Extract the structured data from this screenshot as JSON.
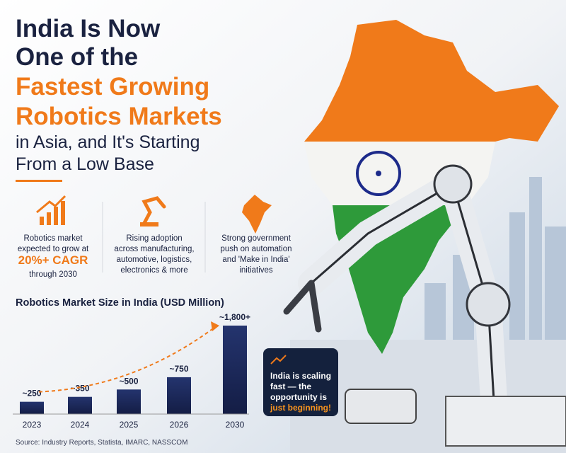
{
  "headline": {
    "lines": [
      "India Is Now",
      "One of the"
    ],
    "highlight": [
      "Fastest Growing",
      "Robotics Markets"
    ],
    "sub": [
      "in Asia, and It's Starting",
      "From a Low Base"
    ]
  },
  "features": [
    {
      "lines": [
        "Robotics market",
        "expected to grow at"
      ],
      "highlight": "20%+ CAGR",
      "after": "through 2030"
    },
    {
      "lines": [
        "Rising adoption",
        "across manufacturing,",
        "automotive, logistics,",
        "electronics & more"
      ]
    },
    {
      "lines": [
        "Strong government",
        "push on automation",
        "and 'Make in India'",
        "initiatives"
      ]
    }
  ],
  "chart_data": {
    "type": "bar",
    "title": "Robotics Market Size in India (USD Million)",
    "categories": [
      "2023",
      "2024",
      "2025",
      "2026",
      "2030"
    ],
    "values": [
      250,
      350,
      500,
      750,
      1800
    ],
    "value_labels": [
      "~250",
      "~350",
      "~500",
      "~750",
      "~1,800+"
    ],
    "color": "#1b2758",
    "trend_color": "#f07a1a"
  },
  "callout": {
    "lines": [
      "India is scaling",
      "fast — the",
      "opportunity is"
    ],
    "highlight": "just beginning!"
  },
  "source": "Source: Industry Reports, Statista, IMARC, NASSCOM"
}
